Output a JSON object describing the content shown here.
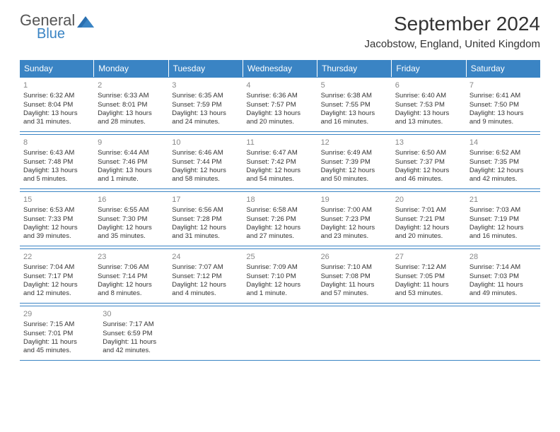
{
  "logo": {
    "general": "General",
    "blue": "Blue"
  },
  "title": "September 2024",
  "location": "Jacobstow, England, United Kingdom",
  "colors": {
    "header_bg": "#3a84c4",
    "header_text": "#ffffff",
    "border": "#3a84c4",
    "daynum": "#888888",
    "bodytext": "#333333",
    "logo_gray": "#555555",
    "logo_blue": "#3a84c4"
  },
  "day_headers": [
    "Sunday",
    "Monday",
    "Tuesday",
    "Wednesday",
    "Thursday",
    "Friday",
    "Saturday"
  ],
  "weeks": [
    [
      {
        "n": "1",
        "sr": "Sunrise: 6:32 AM",
        "ss": "Sunset: 8:04 PM",
        "d1": "Daylight: 13 hours",
        "d2": "and 31 minutes."
      },
      {
        "n": "2",
        "sr": "Sunrise: 6:33 AM",
        "ss": "Sunset: 8:01 PM",
        "d1": "Daylight: 13 hours",
        "d2": "and 28 minutes."
      },
      {
        "n": "3",
        "sr": "Sunrise: 6:35 AM",
        "ss": "Sunset: 7:59 PM",
        "d1": "Daylight: 13 hours",
        "d2": "and 24 minutes."
      },
      {
        "n": "4",
        "sr": "Sunrise: 6:36 AM",
        "ss": "Sunset: 7:57 PM",
        "d1": "Daylight: 13 hours",
        "d2": "and 20 minutes."
      },
      {
        "n": "5",
        "sr": "Sunrise: 6:38 AM",
        "ss": "Sunset: 7:55 PM",
        "d1": "Daylight: 13 hours",
        "d2": "and 16 minutes."
      },
      {
        "n": "6",
        "sr": "Sunrise: 6:40 AM",
        "ss": "Sunset: 7:53 PM",
        "d1": "Daylight: 13 hours",
        "d2": "and 13 minutes."
      },
      {
        "n": "7",
        "sr": "Sunrise: 6:41 AM",
        "ss": "Sunset: 7:50 PM",
        "d1": "Daylight: 13 hours",
        "d2": "and 9 minutes."
      }
    ],
    [
      {
        "n": "8",
        "sr": "Sunrise: 6:43 AM",
        "ss": "Sunset: 7:48 PM",
        "d1": "Daylight: 13 hours",
        "d2": "and 5 minutes."
      },
      {
        "n": "9",
        "sr": "Sunrise: 6:44 AM",
        "ss": "Sunset: 7:46 PM",
        "d1": "Daylight: 13 hours",
        "d2": "and 1 minute."
      },
      {
        "n": "10",
        "sr": "Sunrise: 6:46 AM",
        "ss": "Sunset: 7:44 PM",
        "d1": "Daylight: 12 hours",
        "d2": "and 58 minutes."
      },
      {
        "n": "11",
        "sr": "Sunrise: 6:47 AM",
        "ss": "Sunset: 7:42 PM",
        "d1": "Daylight: 12 hours",
        "d2": "and 54 minutes."
      },
      {
        "n": "12",
        "sr": "Sunrise: 6:49 AM",
        "ss": "Sunset: 7:39 PM",
        "d1": "Daylight: 12 hours",
        "d2": "and 50 minutes."
      },
      {
        "n": "13",
        "sr": "Sunrise: 6:50 AM",
        "ss": "Sunset: 7:37 PM",
        "d1": "Daylight: 12 hours",
        "d2": "and 46 minutes."
      },
      {
        "n": "14",
        "sr": "Sunrise: 6:52 AM",
        "ss": "Sunset: 7:35 PM",
        "d1": "Daylight: 12 hours",
        "d2": "and 42 minutes."
      }
    ],
    [
      {
        "n": "15",
        "sr": "Sunrise: 6:53 AM",
        "ss": "Sunset: 7:33 PM",
        "d1": "Daylight: 12 hours",
        "d2": "and 39 minutes."
      },
      {
        "n": "16",
        "sr": "Sunrise: 6:55 AM",
        "ss": "Sunset: 7:30 PM",
        "d1": "Daylight: 12 hours",
        "d2": "and 35 minutes."
      },
      {
        "n": "17",
        "sr": "Sunrise: 6:56 AM",
        "ss": "Sunset: 7:28 PM",
        "d1": "Daylight: 12 hours",
        "d2": "and 31 minutes."
      },
      {
        "n": "18",
        "sr": "Sunrise: 6:58 AM",
        "ss": "Sunset: 7:26 PM",
        "d1": "Daylight: 12 hours",
        "d2": "and 27 minutes."
      },
      {
        "n": "19",
        "sr": "Sunrise: 7:00 AM",
        "ss": "Sunset: 7:23 PM",
        "d1": "Daylight: 12 hours",
        "d2": "and 23 minutes."
      },
      {
        "n": "20",
        "sr": "Sunrise: 7:01 AM",
        "ss": "Sunset: 7:21 PM",
        "d1": "Daylight: 12 hours",
        "d2": "and 20 minutes."
      },
      {
        "n": "21",
        "sr": "Sunrise: 7:03 AM",
        "ss": "Sunset: 7:19 PM",
        "d1": "Daylight: 12 hours",
        "d2": "and 16 minutes."
      }
    ],
    [
      {
        "n": "22",
        "sr": "Sunrise: 7:04 AM",
        "ss": "Sunset: 7:17 PM",
        "d1": "Daylight: 12 hours",
        "d2": "and 12 minutes."
      },
      {
        "n": "23",
        "sr": "Sunrise: 7:06 AM",
        "ss": "Sunset: 7:14 PM",
        "d1": "Daylight: 12 hours",
        "d2": "and 8 minutes."
      },
      {
        "n": "24",
        "sr": "Sunrise: 7:07 AM",
        "ss": "Sunset: 7:12 PM",
        "d1": "Daylight: 12 hours",
        "d2": "and 4 minutes."
      },
      {
        "n": "25",
        "sr": "Sunrise: 7:09 AM",
        "ss": "Sunset: 7:10 PM",
        "d1": "Daylight: 12 hours",
        "d2": "and 1 minute."
      },
      {
        "n": "26",
        "sr": "Sunrise: 7:10 AM",
        "ss": "Sunset: 7:08 PM",
        "d1": "Daylight: 11 hours",
        "d2": "and 57 minutes."
      },
      {
        "n": "27",
        "sr": "Sunrise: 7:12 AM",
        "ss": "Sunset: 7:05 PM",
        "d1": "Daylight: 11 hours",
        "d2": "and 53 minutes."
      },
      {
        "n": "28",
        "sr": "Sunrise: 7:14 AM",
        "ss": "Sunset: 7:03 PM",
        "d1": "Daylight: 11 hours",
        "d2": "and 49 minutes."
      }
    ],
    [
      {
        "n": "29",
        "sr": "Sunrise: 7:15 AM",
        "ss": "Sunset: 7:01 PM",
        "d1": "Daylight: 11 hours",
        "d2": "and 45 minutes."
      },
      {
        "n": "30",
        "sr": "Sunrise: 7:17 AM",
        "ss": "Sunset: 6:59 PM",
        "d1": "Daylight: 11 hours",
        "d2": "and 42 minutes."
      },
      null,
      null,
      null,
      null,
      null
    ]
  ]
}
